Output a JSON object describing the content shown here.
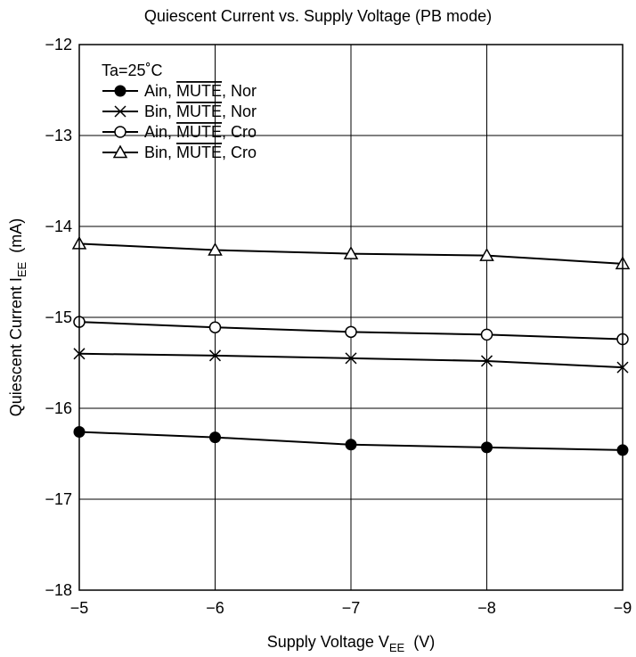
{
  "chart_data": {
    "type": "line",
    "title": "Quiescent Current vs.  Supply Voltage (PB mode)",
    "xlabel": {
      "main": "Supply Voltage  V",
      "sub": "EE",
      "unit": "(V)"
    },
    "ylabel": {
      "main": "Quiescent Current  I",
      "sub": "EE",
      "unit": "(mA)"
    },
    "x": [
      -5,
      -6,
      -7,
      -8,
      -9
    ],
    "xlim": [
      -5,
      -9
    ],
    "ylim": [
      -18,
      -12
    ],
    "xticks": [
      "−5",
      "−6",
      "−7",
      "−8",
      "−9"
    ],
    "yticks": [
      "−12",
      "−13",
      "−14",
      "−15",
      "−16",
      "−17",
      "−18"
    ],
    "grid": true,
    "legend_position": "top-left",
    "legend_title": "Ta=25˚C",
    "series": [
      {
        "name": "Ain, MUTE, Nor",
        "name_parts": [
          "Ain, ",
          "MUTE",
          ", Nor"
        ],
        "marker": "filled-circle",
        "values": [
          -16.26,
          -16.32,
          -16.4,
          -16.43,
          -16.46
        ]
      },
      {
        "name": "Bin, MUTE, Nor",
        "name_parts": [
          "Bin, ",
          "MUTE",
          ", Nor"
        ],
        "marker": "cross",
        "values": [
          -15.4,
          -15.42,
          -15.45,
          -15.48,
          -15.55
        ]
      },
      {
        "name": "Ain, MUTE, Cro",
        "name_parts": [
          "Ain, ",
          "MUTE",
          ", Cro"
        ],
        "marker": "open-circle",
        "values": [
          -15.05,
          -15.11,
          -15.16,
          -15.19,
          -15.24
        ]
      },
      {
        "name": "Bin, MUTE, Cro",
        "name_parts": [
          "Bin, ",
          "MUTE",
          ", Cro"
        ],
        "marker": "open-triangle",
        "values": [
          -14.19,
          -14.26,
          -14.3,
          -14.32,
          -14.41
        ]
      }
    ]
  }
}
